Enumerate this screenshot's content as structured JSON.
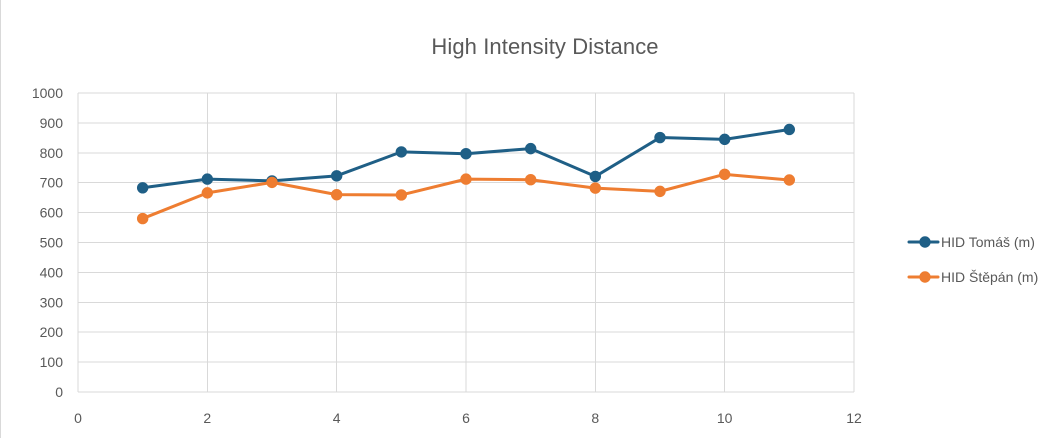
{
  "chart_data": {
    "type": "line",
    "title": "High Intensity Distance",
    "xlabel": "",
    "ylabel": "",
    "xlim": [
      0,
      12
    ],
    "ylim": [
      0,
      1000
    ],
    "xticks": [
      0,
      2,
      4,
      6,
      8,
      10,
      12
    ],
    "yticks": [
      0,
      100,
      200,
      300,
      400,
      500,
      600,
      700,
      800,
      900,
      1000
    ],
    "x": [
      1,
      2,
      3,
      4,
      5,
      6,
      7,
      8,
      9,
      10,
      11
    ],
    "series": [
      {
        "name": "HID Tomáš (m)",
        "color": "#1f5f86",
        "values": [
          683,
          712,
          706,
          723,
          803,
          797,
          814,
          721,
          851,
          845,
          878
        ]
      },
      {
        "name": "HID Štěpán (m)",
        "color": "#ee7d31",
        "values": [
          580,
          666,
          701,
          660,
          659,
          712,
          710,
          682,
          671,
          728,
          709
        ]
      }
    ],
    "grid": true,
    "legend_position": "right"
  }
}
